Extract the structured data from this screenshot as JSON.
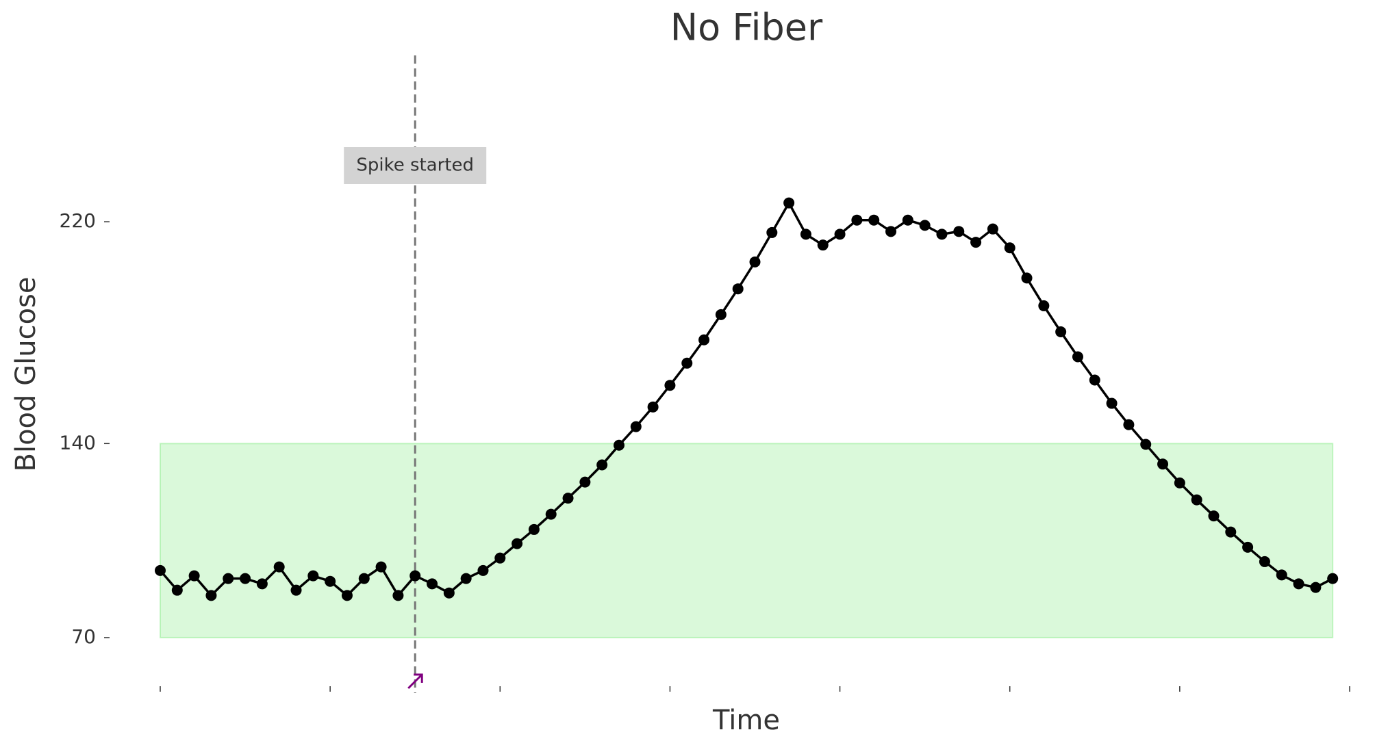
{
  "chart_data": {
    "type": "line",
    "title": "No Fiber",
    "xlabel": "Time",
    "ylabel": "Blood Glucose",
    "x": [
      0,
      1,
      2,
      3,
      4,
      5,
      6,
      7,
      8,
      9,
      10,
      11,
      12,
      13,
      14,
      15,
      16,
      17,
      18,
      19,
      20,
      21,
      22,
      23,
      24,
      25,
      26,
      27,
      28,
      29,
      30,
      31,
      32,
      33,
      34,
      35,
      36,
      37,
      38,
      39,
      40,
      41,
      42,
      43,
      44,
      45,
      46,
      47,
      48,
      49,
      50,
      51,
      52,
      53,
      54,
      55,
      56,
      57,
      58,
      59,
      60,
      61,
      62,
      63,
      64,
      65,
      66,
      67,
      68,
      69
    ],
    "series": [
      {
        "name": "Blood Glucose",
        "color": "#000000",
        "values": [
          94.2,
          87.1,
          92.3,
          85.2,
          91.3,
          91.3,
          89.4,
          95.5,
          87.1,
          92.3,
          90.3,
          85.2,
          91.3,
          95.5,
          85.2,
          92.3,
          89.4,
          86.1,
          91.3,
          94.2,
          98.7,
          103.9,
          109,
          114.5,
          120.3,
          126.1,
          132.3,
          139.4,
          146.1,
          153.2,
          161,
          169,
          177.4,
          186.5,
          195.8,
          205.5,
          216.1,
          226.8,
          215.5,
          211.6,
          215.5,
          220.6,
          220.6,
          216.5,
          220.6,
          218.7,
          215.5,
          216.5,
          212.6,
          217.4,
          210.6,
          199.7,
          189.7,
          180.3,
          171.3,
          162.9,
          154.5,
          146.8,
          139.7,
          132.6,
          125.8,
          119.7,
          113.9,
          108.1,
          102.6,
          97.4,
          92.6,
          89.4,
          88.1,
          91.3
        ]
      }
    ],
    "xlim": [
      0,
      70
    ],
    "xticks": [
      0,
      10,
      20,
      30,
      40,
      50,
      60,
      70
    ],
    "ylim": [
      50,
      280
    ],
    "yticks": [
      70,
      140,
      220
    ],
    "band": {
      "ylim": [
        70,
        140
      ],
      "color": "#90ee90"
    },
    "vline": {
      "x": 15,
      "label": "Spike started",
      "color": "#777777"
    },
    "grid": false
  }
}
